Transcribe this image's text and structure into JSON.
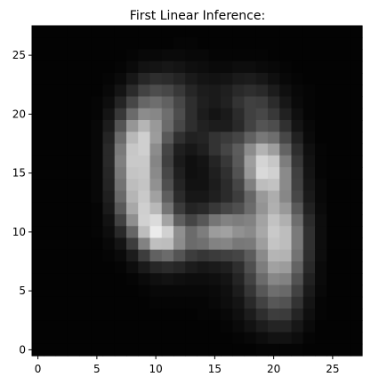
{
  "chart_data": {
    "type": "heatmap",
    "title": "First Linear Inference:",
    "colormap": "gray",
    "rows": 28,
    "cols": 28,
    "xlim": [
      -0.5,
      27.5
    ],
    "ylim": [
      27.5,
      -0.5
    ],
    "xticks": [
      0,
      5,
      10,
      15,
      20,
      25
    ],
    "yticks": [
      0,
      5,
      10,
      15,
      20,
      25
    ],
    "vmin": 0,
    "vmax": 1,
    "values": [
      [
        0.01,
        0.01,
        0.01,
        0.01,
        0.01,
        0.01,
        0.01,
        0.01,
        0.01,
        0.01,
        0.01,
        0.01,
        0.01,
        0.01,
        0.01,
        0.01,
        0.01,
        0.01,
        0.01,
        0.01,
        0.01,
        0.01,
        0.01,
        0.01,
        0.01,
        0.01,
        0.01,
        0.01
      ],
      [
        0.01,
        0.01,
        0.01,
        0.01,
        0.01,
        0.01,
        0.01,
        0.01,
        0.01,
        0.01,
        0.01,
        0.01,
        0.02,
        0.02,
        0.01,
        0.01,
        0.01,
        0.01,
        0.01,
        0.01,
        0.01,
        0.01,
        0.01,
        0.01,
        0.01,
        0.01,
        0.01,
        0.01
      ],
      [
        0.01,
        0.01,
        0.01,
        0.01,
        0.01,
        0.01,
        0.01,
        0.01,
        0.02,
        0.03,
        0.03,
        0.04,
        0.04,
        0.03,
        0.03,
        0.02,
        0.02,
        0.02,
        0.02,
        0.02,
        0.01,
        0.01,
        0.01,
        0.01,
        0.01,
        0.01,
        0.01,
        0.01
      ],
      [
        0.01,
        0.01,
        0.01,
        0.01,
        0.01,
        0.01,
        0.01,
        0.02,
        0.04,
        0.07,
        0.08,
        0.09,
        0.08,
        0.06,
        0.05,
        0.04,
        0.04,
        0.05,
        0.05,
        0.04,
        0.03,
        0.02,
        0.01,
        0.01,
        0.01,
        0.01,
        0.01,
        0.01
      ],
      [
        0.01,
        0.01,
        0.01,
        0.01,
        0.01,
        0.01,
        0.02,
        0.04,
        0.09,
        0.15,
        0.18,
        0.17,
        0.14,
        0.1,
        0.08,
        0.07,
        0.08,
        0.1,
        0.11,
        0.09,
        0.06,
        0.03,
        0.02,
        0.01,
        0.01,
        0.01,
        0.01,
        0.01
      ],
      [
        0.01,
        0.01,
        0.01,
        0.01,
        0.01,
        0.01,
        0.03,
        0.08,
        0.17,
        0.26,
        0.3,
        0.28,
        0.22,
        0.15,
        0.11,
        0.1,
        0.12,
        0.16,
        0.18,
        0.16,
        0.11,
        0.06,
        0.03,
        0.02,
        0.01,
        0.01,
        0.01,
        0.01
      ],
      [
        0.01,
        0.01,
        0.01,
        0.01,
        0.01,
        0.02,
        0.05,
        0.14,
        0.28,
        0.4,
        0.43,
        0.38,
        0.28,
        0.18,
        0.12,
        0.1,
        0.13,
        0.2,
        0.25,
        0.24,
        0.17,
        0.09,
        0.04,
        0.02,
        0.01,
        0.01,
        0.01,
        0.01
      ],
      [
        0.01,
        0.01,
        0.01,
        0.01,
        0.01,
        0.02,
        0.08,
        0.22,
        0.42,
        0.55,
        0.53,
        0.43,
        0.3,
        0.18,
        0.11,
        0.08,
        0.1,
        0.17,
        0.25,
        0.28,
        0.22,
        0.13,
        0.06,
        0.02,
        0.01,
        0.01,
        0.01,
        0.01
      ],
      [
        0.01,
        0.01,
        0.01,
        0.01,
        0.01,
        0.03,
        0.11,
        0.33,
        0.59,
        0.71,
        0.6,
        0.42,
        0.28,
        0.18,
        0.13,
        0.11,
        0.11,
        0.16,
        0.26,
        0.33,
        0.3,
        0.19,
        0.08,
        0.03,
        0.01,
        0.01,
        0.01,
        0.01
      ],
      [
        0.01,
        0.01,
        0.01,
        0.01,
        0.01,
        0.03,
        0.14,
        0.42,
        0.72,
        0.81,
        0.61,
        0.35,
        0.19,
        0.13,
        0.14,
        0.2,
        0.23,
        0.27,
        0.38,
        0.47,
        0.43,
        0.28,
        0.13,
        0.04,
        0.01,
        0.01,
        0.01,
        0.01
      ],
      [
        0.01,
        0.01,
        0.01,
        0.01,
        0.01,
        0.03,
        0.16,
        0.48,
        0.78,
        0.81,
        0.55,
        0.27,
        0.12,
        0.09,
        0.12,
        0.2,
        0.27,
        0.36,
        0.55,
        0.7,
        0.62,
        0.39,
        0.18,
        0.06,
        0.02,
        0.01,
        0.01,
        0.01
      ],
      [
        0.01,
        0.01,
        0.01,
        0.01,
        0.01,
        0.03,
        0.16,
        0.5,
        0.79,
        0.79,
        0.52,
        0.25,
        0.1,
        0.06,
        0.08,
        0.14,
        0.22,
        0.35,
        0.62,
        0.83,
        0.78,
        0.49,
        0.22,
        0.07,
        0.02,
        0.01,
        0.01,
        0.01
      ],
      [
        0.01,
        0.01,
        0.01,
        0.01,
        0.01,
        0.03,
        0.15,
        0.48,
        0.77,
        0.78,
        0.54,
        0.28,
        0.12,
        0.06,
        0.07,
        0.12,
        0.19,
        0.32,
        0.6,
        0.85,
        0.82,
        0.54,
        0.25,
        0.08,
        0.02,
        0.01,
        0.01,
        0.01
      ],
      [
        0.01,
        0.01,
        0.01,
        0.01,
        0.01,
        0.03,
        0.14,
        0.45,
        0.74,
        0.77,
        0.57,
        0.31,
        0.14,
        0.07,
        0.07,
        0.11,
        0.17,
        0.27,
        0.5,
        0.74,
        0.76,
        0.54,
        0.26,
        0.09,
        0.03,
        0.01,
        0.01,
        0.01
      ],
      [
        0.01,
        0.01,
        0.01,
        0.01,
        0.01,
        0.03,
        0.12,
        0.41,
        0.71,
        0.79,
        0.63,
        0.37,
        0.17,
        0.09,
        0.09,
        0.12,
        0.17,
        0.24,
        0.4,
        0.6,
        0.68,
        0.53,
        0.28,
        0.1,
        0.03,
        0.01,
        0.01,
        0.01
      ],
      [
        0.01,
        0.01,
        0.01,
        0.01,
        0.01,
        0.02,
        0.1,
        0.35,
        0.66,
        0.81,
        0.72,
        0.46,
        0.23,
        0.14,
        0.16,
        0.22,
        0.27,
        0.31,
        0.42,
        0.58,
        0.69,
        0.6,
        0.35,
        0.13,
        0.04,
        0.01,
        0.01,
        0.01
      ],
      [
        0.01,
        0.01,
        0.01,
        0.01,
        0.01,
        0.02,
        0.07,
        0.26,
        0.56,
        0.82,
        0.86,
        0.64,
        0.37,
        0.27,
        0.34,
        0.46,
        0.51,
        0.49,
        0.51,
        0.64,
        0.76,
        0.69,
        0.43,
        0.17,
        0.05,
        0.01,
        0.01,
        0.01
      ],
      [
        0.01,
        0.01,
        0.01,
        0.01,
        0.01,
        0.02,
        0.05,
        0.16,
        0.4,
        0.74,
        0.92,
        0.82,
        0.56,
        0.42,
        0.49,
        0.61,
        0.63,
        0.57,
        0.54,
        0.66,
        0.79,
        0.74,
        0.48,
        0.19,
        0.05,
        0.01,
        0.01,
        0.01
      ],
      [
        0.01,
        0.01,
        0.01,
        0.01,
        0.01,
        0.01,
        0.03,
        0.08,
        0.24,
        0.51,
        0.75,
        0.74,
        0.55,
        0.42,
        0.44,
        0.51,
        0.52,
        0.47,
        0.48,
        0.62,
        0.77,
        0.74,
        0.48,
        0.19,
        0.05,
        0.01,
        0.01,
        0.01
      ],
      [
        0.01,
        0.01,
        0.01,
        0.01,
        0.01,
        0.01,
        0.02,
        0.04,
        0.11,
        0.24,
        0.38,
        0.42,
        0.33,
        0.24,
        0.21,
        0.23,
        0.25,
        0.27,
        0.36,
        0.54,
        0.71,
        0.7,
        0.45,
        0.18,
        0.05,
        0.01,
        0.01,
        0.01
      ],
      [
        0.01,
        0.01,
        0.01,
        0.01,
        0.01,
        0.01,
        0.01,
        0.02,
        0.05,
        0.1,
        0.15,
        0.17,
        0.15,
        0.11,
        0.09,
        0.1,
        0.12,
        0.18,
        0.31,
        0.49,
        0.63,
        0.61,
        0.39,
        0.16,
        0.04,
        0.01,
        0.01,
        0.01
      ],
      [
        0.01,
        0.01,
        0.01,
        0.01,
        0.01,
        0.01,
        0.01,
        0.01,
        0.02,
        0.04,
        0.06,
        0.07,
        0.06,
        0.05,
        0.05,
        0.06,
        0.08,
        0.14,
        0.26,
        0.42,
        0.53,
        0.51,
        0.32,
        0.13,
        0.04,
        0.01,
        0.01,
        0.01
      ],
      [
        0.01,
        0.01,
        0.01,
        0.01,
        0.01,
        0.01,
        0.01,
        0.01,
        0.01,
        0.02,
        0.03,
        0.03,
        0.03,
        0.03,
        0.03,
        0.04,
        0.06,
        0.11,
        0.21,
        0.34,
        0.43,
        0.41,
        0.26,
        0.1,
        0.03,
        0.01,
        0.01,
        0.01
      ],
      [
        0.01,
        0.01,
        0.01,
        0.01,
        0.01,
        0.01,
        0.01,
        0.01,
        0.01,
        0.01,
        0.02,
        0.02,
        0.02,
        0.02,
        0.02,
        0.03,
        0.05,
        0.08,
        0.16,
        0.26,
        0.34,
        0.32,
        0.2,
        0.08,
        0.02,
        0.01,
        0.01,
        0.01
      ],
      [
        0.01,
        0.01,
        0.01,
        0.01,
        0.01,
        0.01,
        0.01,
        0.01,
        0.01,
        0.01,
        0.01,
        0.01,
        0.01,
        0.01,
        0.02,
        0.02,
        0.03,
        0.06,
        0.11,
        0.18,
        0.24,
        0.23,
        0.14,
        0.06,
        0.02,
        0.01,
        0.01,
        0.01
      ],
      [
        0.01,
        0.01,
        0.01,
        0.01,
        0.01,
        0.01,
        0.01,
        0.01,
        0.01,
        0.01,
        0.01,
        0.01,
        0.01,
        0.01,
        0.01,
        0.01,
        0.02,
        0.04,
        0.07,
        0.11,
        0.14,
        0.14,
        0.09,
        0.04,
        0.01,
        0.01,
        0.01,
        0.01
      ],
      [
        0.01,
        0.01,
        0.01,
        0.01,
        0.01,
        0.01,
        0.01,
        0.01,
        0.01,
        0.01,
        0.01,
        0.01,
        0.01,
        0.01,
        0.01,
        0.01,
        0.01,
        0.02,
        0.03,
        0.05,
        0.07,
        0.07,
        0.05,
        0.02,
        0.01,
        0.01,
        0.01,
        0.01
      ],
      [
        0.01,
        0.01,
        0.01,
        0.01,
        0.01,
        0.01,
        0.01,
        0.01,
        0.01,
        0.01,
        0.01,
        0.01,
        0.01,
        0.01,
        0.01,
        0.01,
        0.01,
        0.01,
        0.01,
        0.02,
        0.02,
        0.02,
        0.02,
        0.01,
        0.01,
        0.01,
        0.01,
        0.01
      ]
    ]
  }
}
